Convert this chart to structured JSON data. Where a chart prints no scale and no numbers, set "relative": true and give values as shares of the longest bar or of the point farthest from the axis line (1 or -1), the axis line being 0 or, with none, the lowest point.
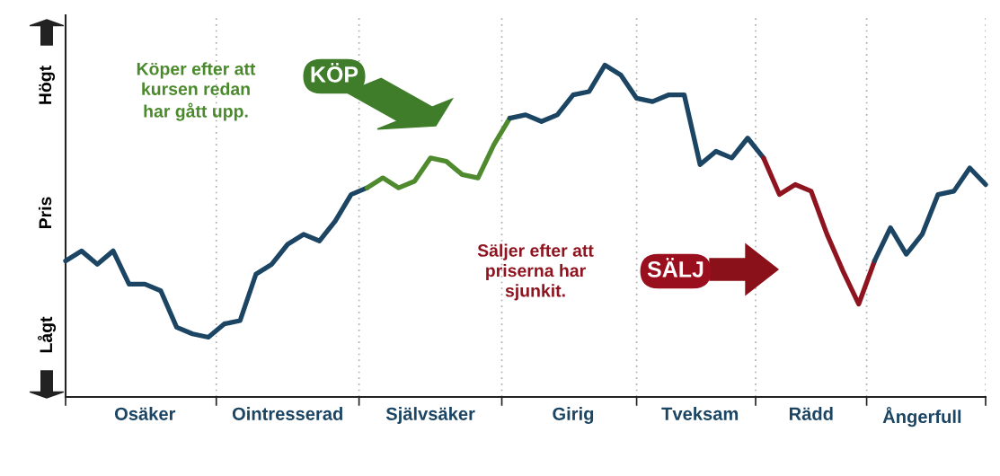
{
  "chart_data": {
    "type": "line",
    "relative": true,
    "ylabel": "Pris",
    "grid": "x",
    "categories": [
      null,
      null,
      null,
      null,
      null,
      "Osäker",
      null,
      null,
      null,
      null,
      null,
      null,
      null,
      null,
      "Ointresserad",
      null,
      null,
      null,
      null,
      null,
      null,
      null,
      null,
      "Självsäker",
      null,
      null,
      null,
      null,
      null,
      null,
      null,
      null,
      "Girig",
      null,
      null,
      null,
      null,
      null,
      null,
      null,
      "Tveksam",
      null,
      null,
      null,
      null,
      null,
      null,
      "Rädd",
      null,
      null,
      null,
      null,
      null,
      null,
      "Ångerfull",
      null,
      null,
      null,
      null
    ],
    "series": [
      {
        "color": "#1b4563",
        "values": [
          0.41,
          0.44,
          0.4,
          0.44,
          0.34,
          0.34,
          0.32,
          0.21,
          0.19,
          0.18,
          0.22,
          0.23,
          0.37,
          0.4,
          0.46,
          0.49,
          0.47,
          0.53,
          0.61,
          0.63,
          null,
          null,
          null,
          null,
          null,
          null,
          null,
          null,
          null,
          null,
          null,
          null,
          null,
          null,
          null,
          null,
          null,
          null,
          null,
          null,
          null,
          null,
          null,
          null,
          null,
          null,
          null,
          null,
          null,
          null,
          null,
          null,
          null,
          null,
          null,
          null,
          null,
          null,
          null
        ]
      },
      {
        "color": "#4f8a2e",
        "values": [
          null,
          null,
          null,
          null,
          null,
          null,
          null,
          null,
          null,
          null,
          null,
          null,
          null,
          null,
          null,
          null,
          null,
          null,
          null,
          0.63,
          0.66,
          0.63,
          0.65,
          0.72,
          0.71,
          0.67,
          0.66,
          0.76,
          0.84,
          null,
          null,
          null,
          null,
          null,
          null,
          null,
          null,
          null,
          null,
          null,
          null,
          null,
          null,
          null,
          null,
          null,
          null,
          null,
          null,
          null,
          null,
          null,
          null,
          null,
          null,
          null,
          null,
          null,
          null
        ]
      },
      {
        "color": "#1b4563",
        "values": [
          null,
          null,
          null,
          null,
          null,
          null,
          null,
          null,
          null,
          null,
          null,
          null,
          null,
          null,
          null,
          null,
          null,
          null,
          null,
          null,
          null,
          null,
          null,
          null,
          null,
          null,
          null,
          null,
          0.84,
          0.85,
          0.83,
          0.85,
          0.91,
          0.92,
          1.0,
          0.97,
          0.9,
          0.89,
          0.91,
          0.91,
          0.7,
          0.74,
          0.72,
          0.78,
          0.72,
          null,
          null,
          null,
          null,
          null,
          null,
          null,
          null,
          null,
          null,
          null,
          null,
          null,
          null
        ]
      },
      {
        "color": "#8e1520",
        "values": [
          null,
          null,
          null,
          null,
          null,
          null,
          null,
          null,
          null,
          null,
          null,
          null,
          null,
          null,
          null,
          null,
          null,
          null,
          null,
          null,
          null,
          null,
          null,
          null,
          null,
          null,
          null,
          null,
          null,
          null,
          null,
          null,
          null,
          null,
          null,
          null,
          null,
          null,
          null,
          null,
          null,
          null,
          null,
          null,
          0.72,
          0.61,
          0.64,
          0.62,
          0.49,
          0.38,
          0.28,
          0.41,
          null,
          null,
          null,
          null,
          null,
          null,
          null
        ]
      },
      {
        "color": "#1b4563",
        "values": [
          null,
          null,
          null,
          null,
          null,
          null,
          null,
          null,
          null,
          null,
          null,
          null,
          null,
          null,
          null,
          null,
          null,
          null,
          null,
          null,
          null,
          null,
          null,
          null,
          null,
          null,
          null,
          null,
          null,
          null,
          null,
          null,
          null,
          null,
          null,
          null,
          null,
          null,
          null,
          null,
          null,
          null,
          null,
          null,
          null,
          null,
          null,
          null,
          null,
          null,
          null,
          0.41,
          0.51,
          0.43,
          0.49,
          0.61,
          0.62,
          0.69,
          0.64
        ]
      }
    ],
    "annotations": [
      "Högt",
      "Lågt",
      "Köper efter att\nkursen redan\nhar gått upp.",
      "KÖP",
      "Säljer efter att\npriserna har\nsjunkit.",
      "SÄLJ"
    ]
  }
}
